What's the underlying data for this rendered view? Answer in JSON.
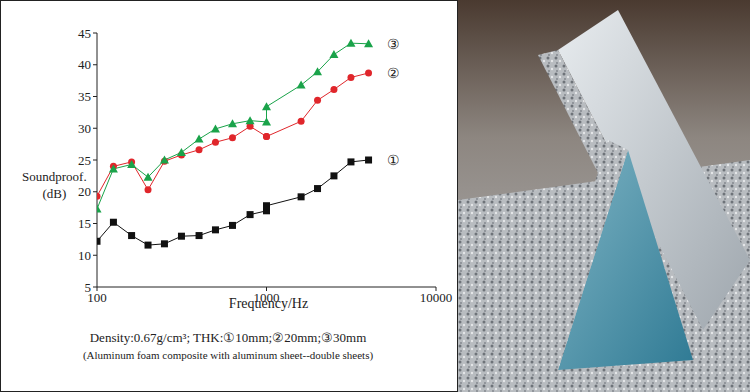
{
  "chart_data": {
    "type": "line",
    "xlabel": "Frequency/Hz",
    "ylabel": "Soundproof.\n(dB)",
    "annotations": [
      "Density:0.67g/cm³; THK:①10mm;②20mm;③30mm",
      "(Aluminum foam composite with aluminum sheet--double sheets)"
    ],
    "log": "x",
    "grid": false,
    "xlim": [
      100,
      10000
    ],
    "xticks": [
      100,
      1000,
      10000
    ],
    "ylim": [
      5,
      45
    ],
    "yticks": [
      5,
      10,
      15,
      20,
      25,
      30,
      35,
      40,
      45
    ],
    "x": [
      100,
      125,
      160,
      200,
      250,
      315,
      400,
      500,
      630,
      800,
      1000,
      1000,
      1600,
      2000,
      2500,
      3150,
      4000
    ],
    "series": [
      {
        "name": "①",
        "color": "#111111",
        "marker": "square",
        "values": [
          12.2,
          15.2,
          13.1,
          11.6,
          11.8,
          13.0,
          13.1,
          14.0,
          14.7,
          16.4,
          17.0,
          17.8,
          19.2,
          20.5,
          22.5,
          24.7,
          25.0
        ]
      },
      {
        "name": "②",
        "color": "#e0262b",
        "marker": "circle",
        "values": [
          19.3,
          24.0,
          24.7,
          20.3,
          24.8,
          25.8,
          26.6,
          27.8,
          28.5,
          30.3,
          28.7,
          28.7,
          31.1,
          34.4,
          36.1,
          38.0,
          38.7
        ]
      },
      {
        "name": "③",
        "color": "#1aa34a",
        "marker": "triangle",
        "values": [
          17.3,
          23.6,
          24.3,
          22.3,
          25.0,
          26.2,
          28.3,
          29.9,
          30.7,
          31.2,
          31.0,
          33.4,
          36.8,
          38.9,
          41.6,
          43.4,
          43.3
        ]
      }
    ]
  }
}
